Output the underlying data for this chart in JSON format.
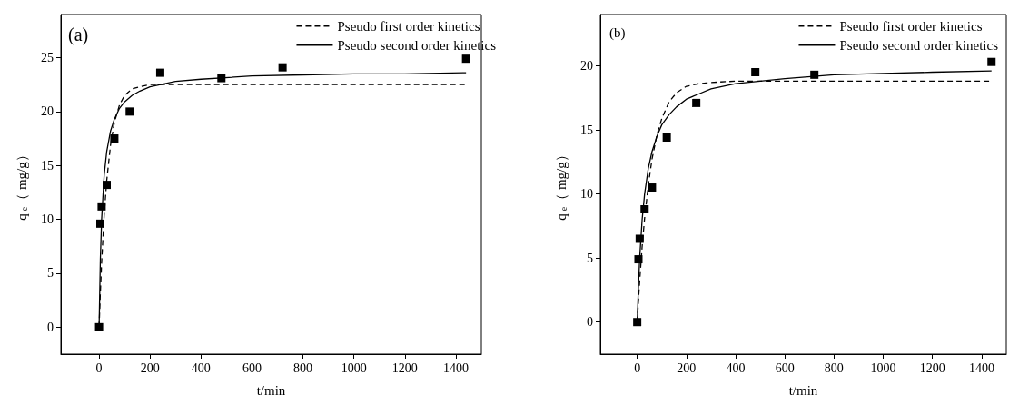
{
  "chart_data": [
    {
      "type": "scatter",
      "xlabel": "t/min",
      "ylabel": "q$_{e}$（ mg/g）",
      "annotations": [
        "(a)"
      ],
      "xlim": [
        -150,
        1500
      ],
      "ylim": [
        -2.5,
        29
      ],
      "xticks": [
        0,
        200,
        400,
        600,
        800,
        1000,
        1200,
        1400
      ],
      "yticks": [
        0,
        5,
        10,
        15,
        20,
        25
      ],
      "legend": "top right",
      "series": [
        {
          "marker": "square",
          "color": "#000000",
          "x": [
            0,
            5,
            10,
            30,
            60,
            120,
            240,
            480,
            720,
            1440
          ],
          "values": [
            0,
            9.6,
            11.2,
            13.2,
            17.5,
            20.0,
            23.6,
            23.1,
            24.1,
            24.9
          ]
        },
        {
          "type": "line",
          "name": "Pseudo first order kinetics",
          "line_style": "dashed",
          "marker": "none",
          "color": "#000000",
          "x": [
            0,
            5,
            10,
            20,
            30,
            45,
            60,
            80,
            100,
            130,
            160,
            200,
            300,
            1440
          ],
          "values": [
            0,
            3.2,
            6.0,
            10.4,
            13.6,
            16.9,
            19.0,
            20.6,
            21.5,
            22.1,
            22.3,
            22.5,
            22.5,
            22.5
          ]
        },
        {
          "type": "line",
          "name": "Pseudo second order kinetics",
          "line_style": "solid",
          "marker": "none",
          "color": "#000000",
          "x": [
            0,
            5,
            10,
            20,
            30,
            45,
            60,
            80,
            100,
            130,
            160,
            200,
            300,
            400,
            600,
            800,
            1000,
            1200,
            1440
          ],
          "values": [
            0,
            6.3,
            10.0,
            14.1,
            16.3,
            18.2,
            19.3,
            20.3,
            20.9,
            21.5,
            21.9,
            22.3,
            22.8,
            23.0,
            23.3,
            23.4,
            23.5,
            23.5,
            23.6
          ]
        }
      ]
    },
    {
      "type": "scatter",
      "xlabel": "t/min",
      "ylabel": "q$_{e}$（ mg/g）",
      "annotations": [
        "(b)"
      ],
      "xlim": [
        -150,
        1500
      ],
      "ylim": [
        -2.5,
        24
      ],
      "xticks": [
        0,
        200,
        400,
        600,
        800,
        1000,
        1200,
        1400
      ],
      "yticks": [
        0,
        5,
        10,
        15,
        20
      ],
      "legend": "top right",
      "series": [
        {
          "marker": "square",
          "color": "#000000",
          "x": [
            0,
            5,
            10,
            30,
            60,
            120,
            240,
            480,
            720,
            1440
          ],
          "values": [
            0,
            4.9,
            6.5,
            8.8,
            10.5,
            14.4,
            17.1,
            19.5,
            19.3,
            20.3
          ]
        },
        {
          "type": "line",
          "name": "Pseudo first order kinetics",
          "line_style": "dashed",
          "marker": "none",
          "color": "#000000",
          "x": [
            0,
            5,
            10,
            20,
            30,
            45,
            60,
            80,
            100,
            130,
            160,
            200,
            250,
            300,
            400,
            1440
          ],
          "values": [
            0,
            1.7,
            3.2,
            5.9,
            8.1,
            10.7,
            12.7,
            14.6,
            15.9,
            17.2,
            17.9,
            18.4,
            18.6,
            18.7,
            18.8,
            18.8
          ]
        },
        {
          "type": "line",
          "name": "Pseudo second order kinetics",
          "line_style": "solid",
          "marker": "none",
          "color": "#000000",
          "x": [
            0,
            5,
            10,
            20,
            30,
            45,
            60,
            80,
            100,
            130,
            160,
            200,
            250,
            300,
            400,
            600,
            800,
            1000,
            1200,
            1440
          ],
          "values": [
            0,
            2.8,
            5.0,
            8.0,
            10.0,
            12.0,
            13.3,
            14.5,
            15.4,
            16.2,
            16.8,
            17.4,
            17.8,
            18.2,
            18.6,
            19.0,
            19.3,
            19.4,
            19.5,
            19.6
          ]
        }
      ]
    }
  ]
}
